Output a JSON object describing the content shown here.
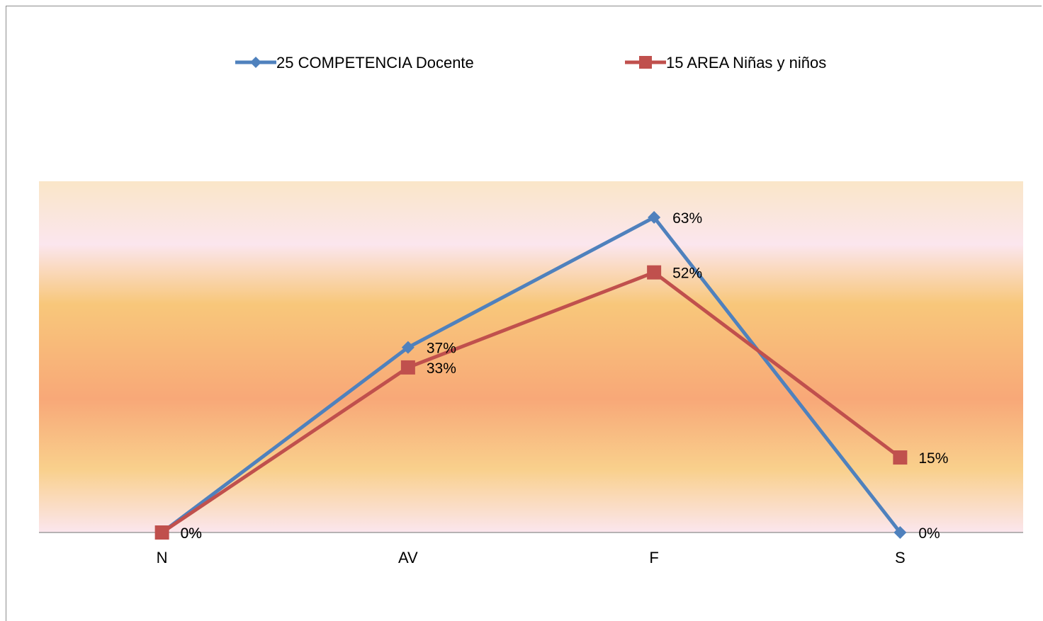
{
  "chart_data": {
    "type": "line",
    "title": "",
    "xlabel": "",
    "ylabel": "",
    "categories": [
      "N",
      "AV",
      "F",
      "S"
    ],
    "ylim": [
      0,
      0.63
    ],
    "grid": false,
    "legend_position": "top",
    "series": [
      {
        "name": "25 COMPETENCIA Docente",
        "values": [
          0,
          0.37,
          0.63,
          0
        ],
        "labels": [
          "0%",
          "37%",
          "63%",
          "0%"
        ],
        "color": "#4f81bd",
        "marker": "diamond"
      },
      {
        "name": "15 AREA Niñas y niños",
        "values": [
          0,
          0.33,
          0.52,
          0.15
        ],
        "labels": [
          "0%",
          "33%",
          "52%",
          "15%"
        ],
        "color": "#c0504d",
        "marker": "square"
      }
    ],
    "background_gradient": [
      "#fae6c8",
      "#fbe6ee",
      "#f8c77a",
      "#f8a878",
      "#f9d08c",
      "#fbe6ee"
    ]
  }
}
